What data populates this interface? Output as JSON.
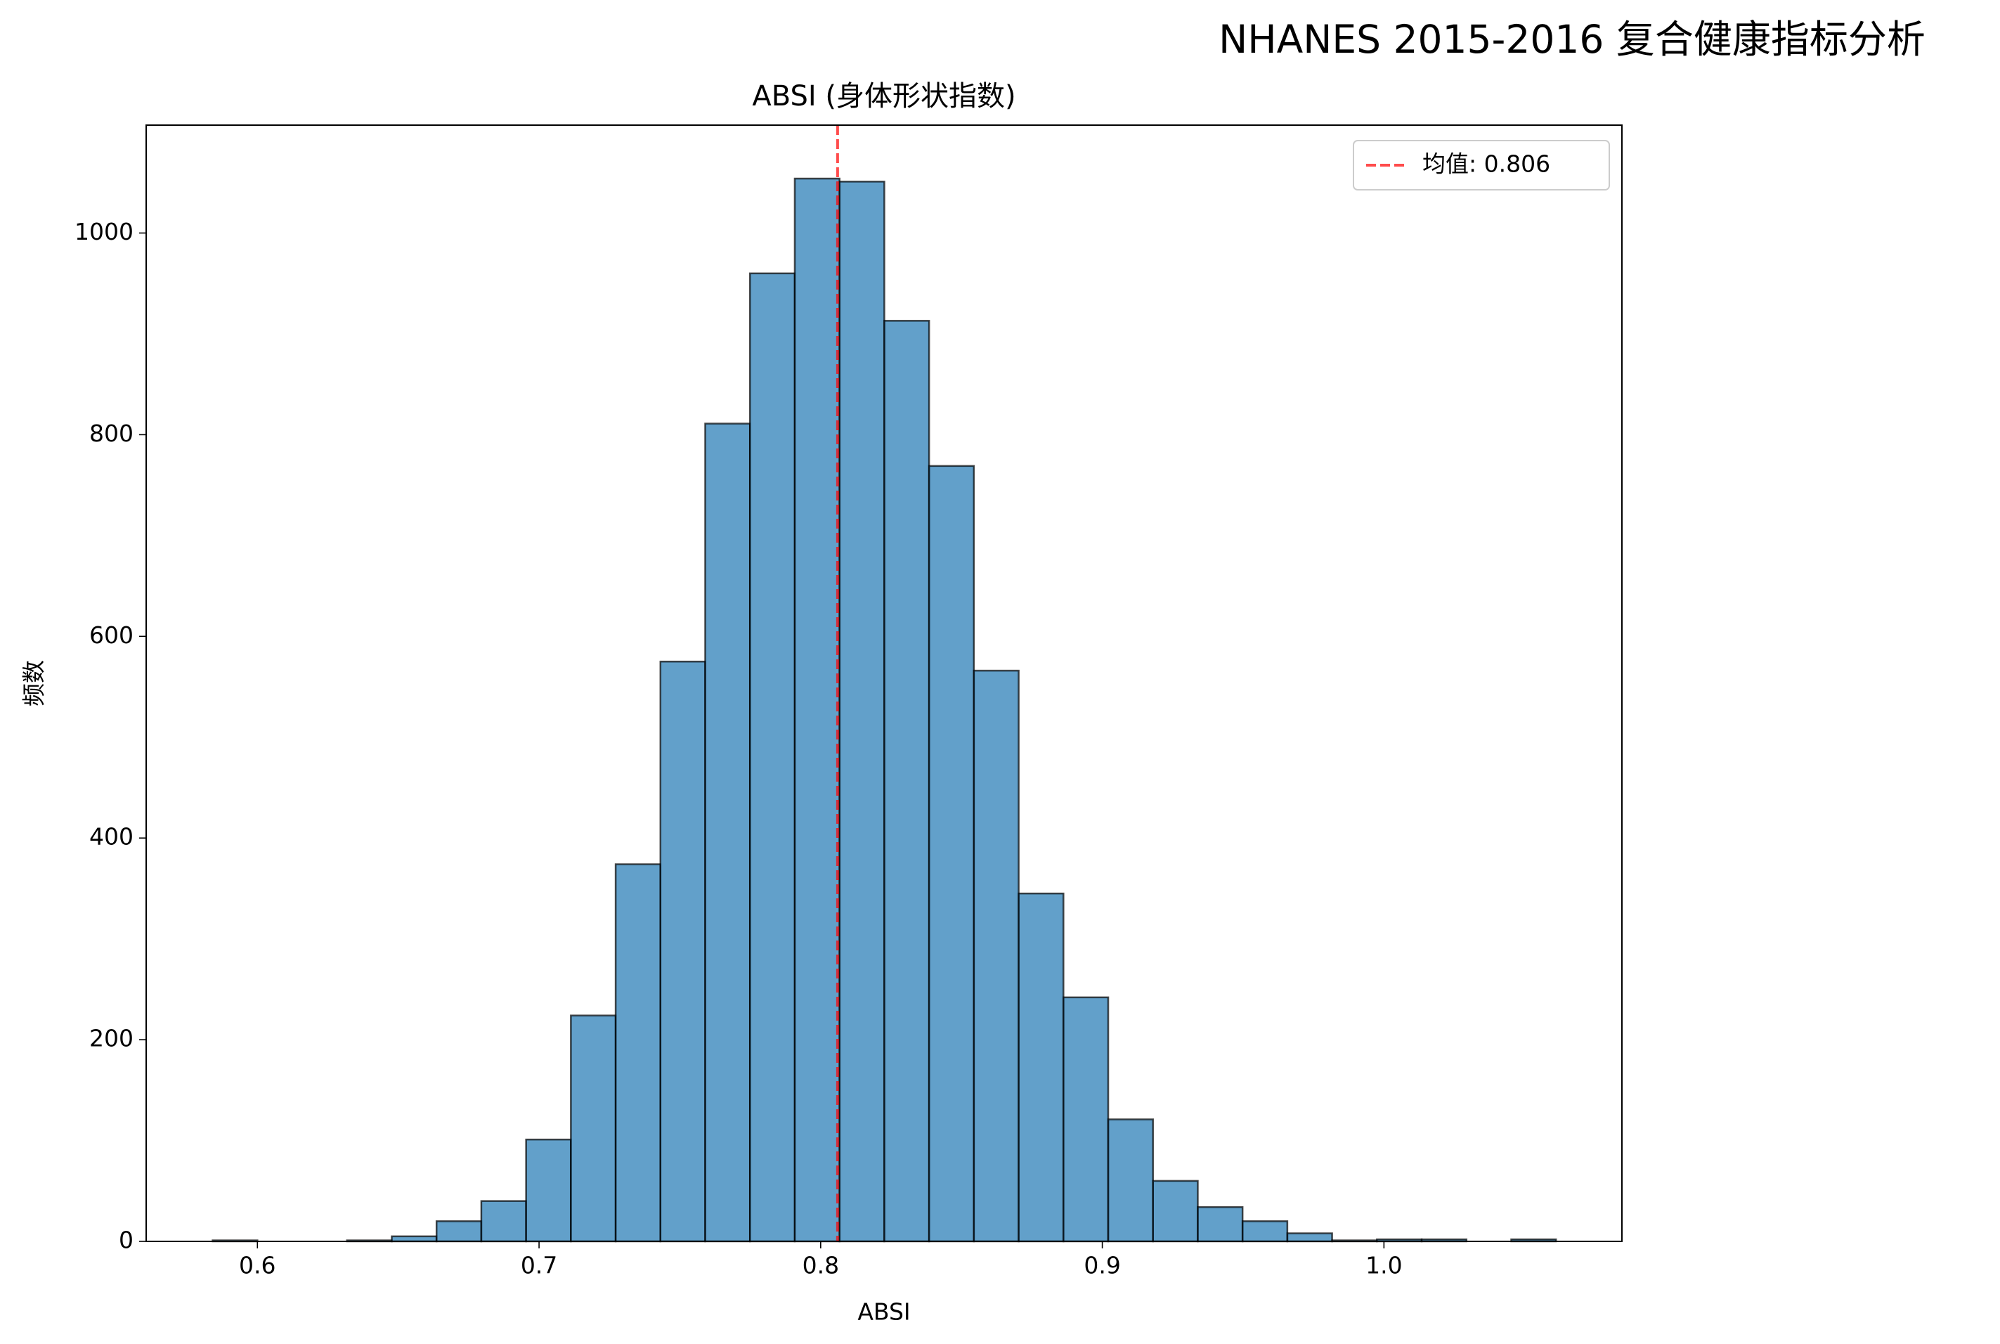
{
  "chart_data": {
    "type": "histogram",
    "suptitle": "NHANES 2015-2016 复合健康指标分析",
    "title": "ABSI (身体形状指数)",
    "xlabel": "ABSI",
    "ylabel": "频数",
    "bins": [
      0.5841,
      0.6,
      0.6159,
      0.6318,
      0.6477,
      0.6636,
      0.6795,
      0.6954,
      0.7113,
      0.7272,
      0.7431,
      0.759,
      0.7749,
      0.7908,
      0.8067,
      0.8226,
      0.8385,
      0.8544,
      0.8703,
      0.8862,
      0.9021,
      0.918,
      0.9339,
      0.9498,
      0.9657,
      0.9816,
      0.9975,
      1.0134,
      1.0293,
      1.0452,
      1.0611
    ],
    "counts": [
      1,
      0,
      0,
      1,
      5,
      20,
      40,
      101,
      224,
      374,
      575,
      811,
      960,
      1054,
      1051,
      913,
      769,
      566,
      345,
      242,
      121,
      60,
      34,
      20,
      8,
      1,
      2,
      2,
      0,
      2
    ],
    "color": "#1f77b4",
    "edgecolor": "#000000",
    "xlim": [
      0.5605,
      1.0845
    ],
    "ylim": [
      0,
      1107
    ],
    "xticks": [
      0.6,
      0.7,
      0.8,
      0.9,
      {
        "value": 1,
        "label": "1.0"
      }
    ],
    "yticks": [
      0,
      200,
      400,
      600,
      800,
      1000
    ],
    "mean_line": {
      "value": 0.806,
      "label": "均值: 0.806",
      "color": "#ff0000"
    },
    "legend": "upper right"
  }
}
